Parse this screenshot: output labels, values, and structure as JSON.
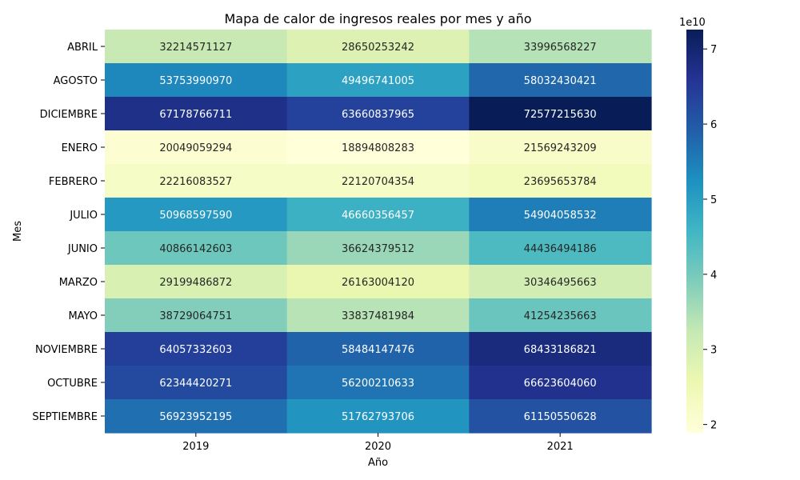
{
  "chart_data": {
    "type": "heatmap",
    "title": "Mapa de calor de ingresos reales por mes y año",
    "xlabel": "Año",
    "ylabel": "Mes",
    "x_categories": [
      "2019",
      "2020",
      "2021"
    ],
    "y_categories": [
      "ABRIL",
      "AGOSTO",
      "DICIEMBRE",
      "ENERO",
      "FEBRERO",
      "JULIO",
      "JUNIO",
      "MARZO",
      "MAYO",
      "NOVIEMBRE",
      "OCTUBRE",
      "SEPTIEMBRE"
    ],
    "values": [
      [
        32214571127,
        28650253242,
        33996568227
      ],
      [
        53753990970,
        49496741005,
        58032430421
      ],
      [
        67178766711,
        63660837965,
        72577215630
      ],
      [
        20049059294,
        18894808283,
        21569243209
      ],
      [
        22216083527,
        22120704354,
        23695653784
      ],
      [
        50968597590,
        46660356457,
        54904058532
      ],
      [
        40866142603,
        36624379512,
        44436494186
      ],
      [
        29199486872,
        26163004120,
        30346495663
      ],
      [
        38729064751,
        33837481984,
        41254235663
      ],
      [
        64057332603,
        58484147476,
        68433186821
      ],
      [
        62344420271,
        56200210633,
        66623604060
      ],
      [
        56923952195,
        51762793706,
        61150550628
      ]
    ],
    "colorbar": {
      "colormap": "YlGnBu",
      "vmin": 18894808283,
      "vmax": 72577215630,
      "ticks": [
        2,
        3,
        4,
        5,
        6,
        7
      ],
      "scale_label": "1e10"
    }
  }
}
